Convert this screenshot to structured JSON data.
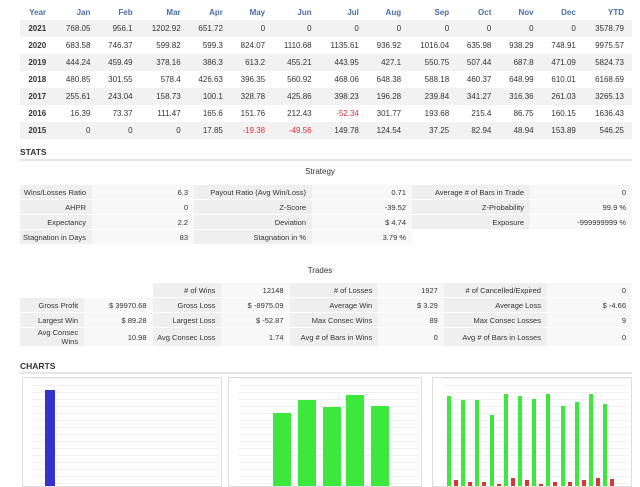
{
  "monthly": {
    "headers": [
      "Year",
      "Jan",
      "Feb",
      "Mar",
      "Apr",
      "May",
      "Jun",
      "Jul",
      "Aug",
      "Sep",
      "Oct",
      "Nov",
      "Dec",
      "YTD"
    ],
    "rows": [
      [
        "2021",
        "768.05",
        "956.1",
        "1202.92",
        "651.72",
        "0",
        "0",
        "0",
        "0",
        "0",
        "0",
        "0",
        "0",
        "3578.79"
      ],
      [
        "2020",
        "683.58",
        "746.37",
        "599.82",
        "599.3",
        "824.07",
        "1110.68",
        "1135.61",
        "936.92",
        "1016.04",
        "635.98",
        "938.29",
        "748.91",
        "9975.57"
      ],
      [
        "2019",
        "444.24",
        "459.49",
        "378.16",
        "386.3",
        "613.2",
        "455.21",
        "443.95",
        "427.1",
        "550.75",
        "507.44",
        "687.8",
        "471.09",
        "5824.73"
      ],
      [
        "2018",
        "480.85",
        "301.55",
        "578.4",
        "426.63",
        "396.35",
        "560.92",
        "468.06",
        "648.38",
        "588.18",
        "460.37",
        "648.99",
        "610.01",
        "6168.69"
      ],
      [
        "2017",
        "255.61",
        "243.04",
        "158.73",
        "100.1",
        "328.78",
        "425.86",
        "398.23",
        "196.28",
        "239.84",
        "341.27",
        "316.36",
        "261.03",
        "3265.13"
      ],
      [
        "2016",
        "16.39",
        "73.37",
        "111.47",
        "165.6",
        "151.76",
        "212.43",
        "-52.34",
        "301.77",
        "193.68",
        "215.4",
        "86.75",
        "160.15",
        "1636.43"
      ],
      [
        "2015",
        "0",
        "0",
        "0",
        "17.85",
        "-19.38",
        "-49.56",
        "149.78",
        "124.54",
        "37.25",
        "82.94",
        "48.94",
        "153.89",
        "546.25"
      ]
    ]
  },
  "stats": {
    "title": "STATS",
    "strategy_title": "Strategy",
    "strategy": [
      [
        "Wins/Losses Ratio",
        "6.3",
        "Payout Ratio (Avg Win/Loss)",
        "0.71",
        "Average # of Bars in Trade",
        "0"
      ],
      [
        "AHPR",
        "0",
        "Z-Score",
        "-39.52",
        "Z-Probability",
        "99.9 %"
      ],
      [
        "Expectancy",
        "2.2",
        "Deviation",
        "$ 4.74",
        "Exposure",
        "-999999999 %"
      ],
      [
        "Stagnation in Days",
        "83",
        "Stagnation in %",
        "3.79 %",
        "",
        ""
      ]
    ],
    "trades_title": "Trades",
    "trades": [
      [
        "",
        "",
        "# of Wins",
        "12148",
        "# of Losses",
        "1927",
        "# of Cancelled/Expired",
        "0"
      ],
      [
        "Gross Profit",
        "$ 39970.68",
        "Gross Loss",
        "$ -8975.09",
        "Average Win",
        "$ 3.29",
        "Average Loss",
        "$ -4.66"
      ],
      [
        "Largest Win",
        "$ 89.28",
        "Largest Loss",
        "$ -52.87",
        "Max Consec Wins",
        "89",
        "Max Consec Losses",
        "9"
      ],
      [
        "Avg Consec Wins",
        "10.98",
        "Avg Consec Loss",
        "1.74",
        "Avg # of Bars in Wins",
        "0",
        "Avg # of Bars in Losses",
        "0"
      ]
    ]
  },
  "charts": {
    "title": "CHARTS"
  },
  "chart_data": [
    {
      "type": "bar",
      "series": [
        {
          "color": "#3333cc",
          "values": [
            100,
            3
          ]
        }
      ]
    },
    {
      "type": "bar",
      "series": [
        {
          "color": "#3de83d",
          "values": [
            78,
            90,
            84,
            95,
            85
          ]
        }
      ]
    },
    {
      "type": "bar",
      "series": [
        {
          "color": "#3de83d",
          "values": [
            94,
            90,
            90,
            76,
            96,
            94,
            91,
            96,
            85,
            88,
            96,
            87
          ]
        },
        {
          "color": "#d43a3a",
          "values": [
            13,
            12,
            12,
            10,
            15,
            13,
            10,
            12,
            12,
            13,
            15,
            14
          ]
        }
      ]
    }
  ],
  "colors": {
    "header": "#4a6fa5",
    "negative": "#e03030"
  }
}
